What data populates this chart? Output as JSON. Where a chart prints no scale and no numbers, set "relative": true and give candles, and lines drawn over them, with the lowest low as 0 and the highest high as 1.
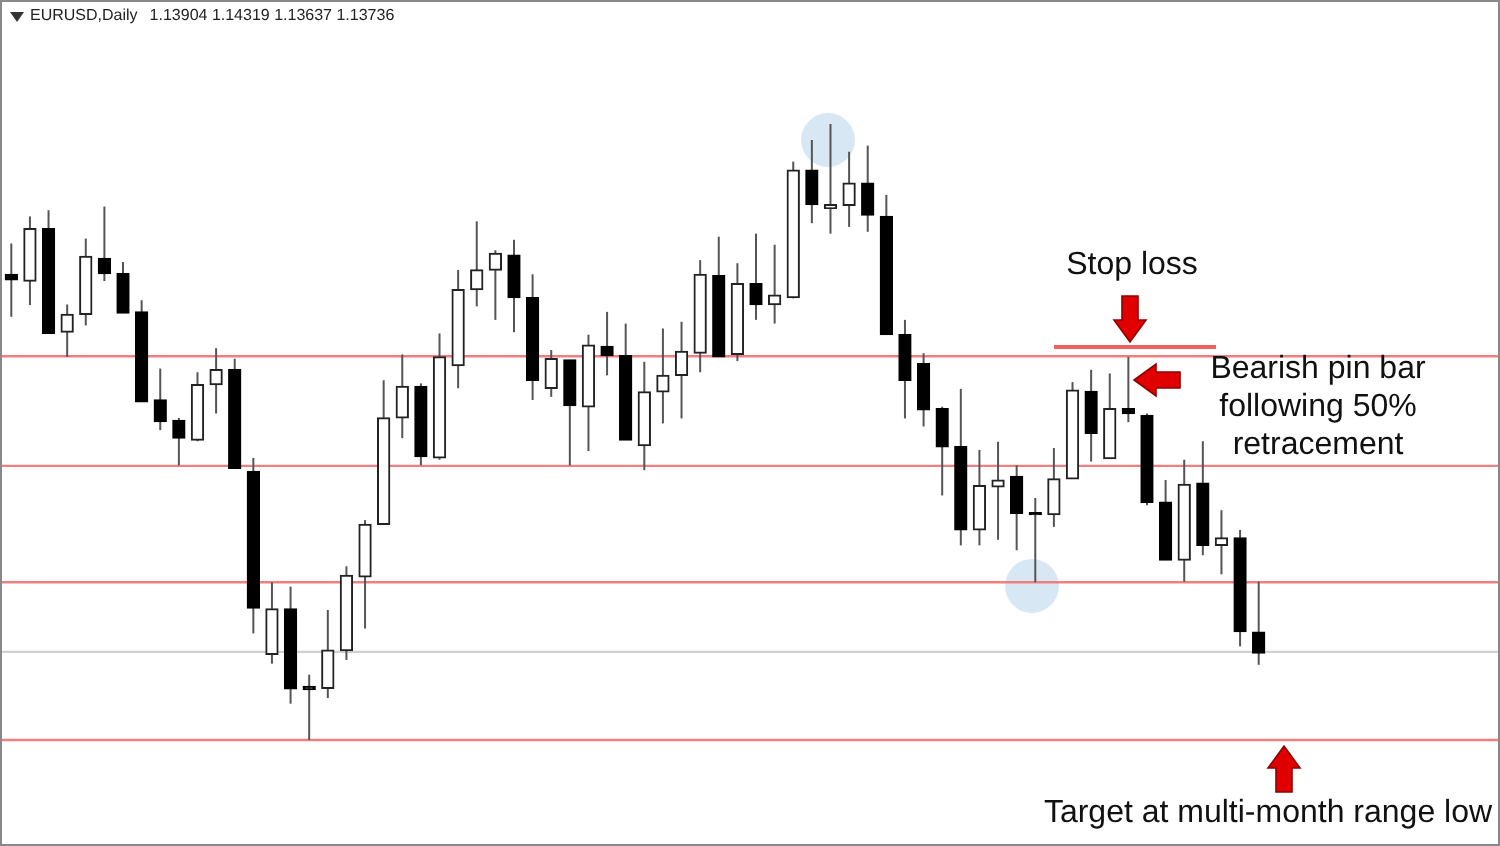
{
  "chart_data": {
    "type": "candlestick",
    "title": "EURUSD,Daily",
    "subtitle": "1.13904 1.14319 1.13637 1.13736",
    "relative": true,
    "categories": [
      null,
      null,
      null,
      null,
      null,
      null,
      null,
      null,
      null,
      null,
      null,
      null,
      null,
      null,
      null,
      null,
      null,
      null,
      null,
      null,
      null,
      null,
      null,
      null,
      null,
      null,
      null,
      null,
      null,
      null,
      null,
      null,
      null,
      null,
      null,
      null,
      null,
      null,
      null,
      null,
      null,
      null,
      null,
      null,
      null,
      null,
      null,
      null,
      null,
      null,
      null,
      null,
      null,
      null,
      null,
      null,
      null,
      null,
      null,
      null,
      null,
      null,
      null,
      null,
      null,
      null,
      null,
      null
    ],
    "ohlc": [
      [
        0.756,
        0.806,
        0.687,
        0.747
      ],
      [
        0.745,
        0.85,
        0.706,
        0.83
      ],
      [
        0.83,
        0.86,
        0.66,
        0.66
      ],
      [
        0.662,
        0.707,
        0.622,
        0.691
      ],
      [
        0.691,
        0.814,
        0.673,
        0.785
      ],
      [
        0.782,
        0.866,
        0.745,
        0.757
      ],
      [
        0.757,
        0.776,
        0.693,
        0.693
      ],
      [
        0.695,
        0.714,
        0.549,
        0.549
      ],
      [
        0.552,
        0.603,
        0.503,
        0.517
      ],
      [
        0.519,
        0.523,
        0.446,
        0.49
      ],
      [
        0.487,
        0.597,
        0.485,
        0.577
      ],
      [
        0.577,
        0.636,
        0.53,
        0.601
      ],
      [
        0.601,
        0.619,
        0.441,
        0.441
      ],
      [
        0.436,
        0.458,
        0.173,
        0.214
      ],
      [
        0.139,
        0.256,
        0.124,
        0.213
      ],
      [
        0.213,
        0.249,
        0.059,
        0.083
      ],
      [
        0.087,
        0.106,
        0,
        0.082
      ],
      [
        0.084,
        0.211,
        0.068,
        0.146
      ],
      [
        0.145,
        0.282,
        0.13,
        0.267
      ],
      [
        0.265,
        0.357,
        0.181,
        0.35
      ],
      [
        0.35,
        0.584,
        0.35,
        0.523
      ],
      [
        0.523,
        0.626,
        0.49,
        0.574
      ],
      [
        0.574,
        0.579,
        0.446,
        0.46
      ],
      [
        0.458,
        0.66,
        0.455,
        0.622
      ],
      [
        0.608,
        0.763,
        0.571,
        0.731
      ],
      [
        0.731,
        0.842,
        0.704,
        0.763
      ],
      [
        0.763,
        0.795,
        0.682,
        0.79
      ],
      [
        0.787,
        0.812,
        0.662,
        0.718
      ],
      [
        0.718,
        0.756,
        0.552,
        0.584
      ],
      [
        0.571,
        0.633,
        0.557,
        0.619
      ],
      [
        0.617,
        0.617,
        0.446,
        0.543
      ],
      [
        0.541,
        0.658,
        0.469,
        0.641
      ],
      [
        0.639,
        0.695,
        0.592,
        0.624
      ],
      [
        0.624,
        0.676,
        0.487,
        0.487
      ],
      [
        0.478,
        0.614,
        0.438,
        0.565
      ],
      [
        0.565,
        0.668,
        0.514,
        0.592
      ],
      [
        0.592,
        0.679,
        0.522,
        0.631
      ],
      [
        0.628,
        0.779,
        0.597,
        0.756
      ],
      [
        0.754,
        0.817,
        0.622,
        0.622
      ],
      [
        0.626,
        0.774,
        0.615,
        0.741
      ],
      [
        0.741,
        0.822,
        0.682,
        0.707
      ],
      [
        0.707,
        0.804,
        0.676,
        0.722
      ],
      [
        0.718,
        0.939,
        0.717,
        0.925
      ],
      [
        0.925,
        0.974,
        0.839,
        0.869
      ],
      [
        0.863,
        1,
        0.822,
        0.869
      ],
      [
        0.868,
        0.955,
        0.833,
        0.904
      ],
      [
        0.904,
        0.965,
        0.825,
        0.852
      ],
      [
        0.85,
        0.885,
        0.658,
        0.658
      ],
      [
        0.658,
        0.682,
        0.522,
        0.584
      ],
      [
        0.611,
        0.628,
        0.509,
        0.536
      ],
      [
        0.538,
        0.541,
        0.397,
        0.476
      ],
      [
        0.476,
        0.57,
        0.316,
        0.341
      ],
      [
        0.341,
        0.471,
        0.316,
        0.413
      ],
      [
        0.411,
        0.484,
        0.325,
        0.422
      ],
      [
        0.428,
        0.446,
        0.308,
        0.368
      ],
      [
        0.368,
        0.393,
        0.256,
        0.366
      ],
      [
        0.366,
        0.474,
        0.346,
        0.424
      ],
      [
        0.424,
        0.581,
        0.424,
        0.568
      ],
      [
        0.566,
        0.601,
        0.452,
        0.498
      ],
      [
        0.457,
        0.595,
        0.457,
        0.538
      ],
      [
        0.538,
        0.622,
        0.516,
        0.53
      ],
      [
        0.527,
        0.53,
        0.381,
        0.386
      ],
      [
        0.386,
        0.422,
        0.292,
        0.292
      ],
      [
        0.292,
        0.455,
        0.257,
        0.415
      ],
      [
        0.417,
        0.485,
        0.3,
        0.316
      ],
      [
        0.316,
        0.373,
        0.269,
        0.328
      ],
      [
        0.328,
        0.341,
        0.152,
        0.176
      ],
      [
        0.175,
        0.257,
        0.122,
        0.141
      ]
    ],
    "ref_lines": [
      {
        "axis": "y",
        "value": 0.623,
        "color": "#f08080"
      },
      {
        "axis": "y",
        "value": 0.445,
        "color": "#f08080"
      },
      {
        "axis": "y",
        "value": 0.256,
        "color": "#f08080"
      },
      {
        "axis": "y",
        "value": 0.143,
        "color": "#d0d0d0"
      },
      {
        "axis": "y",
        "value": 0,
        "color": "#f08080"
      }
    ],
    "annotations": [
      "Stop loss",
      "Bearish pin bar following 50% retracement",
      "Target at multi-month range low"
    ]
  }
}
